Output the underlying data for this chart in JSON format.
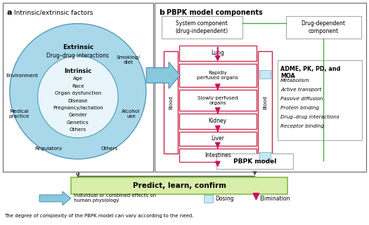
{
  "title_a": "Intrinsic/extrinsic factors",
  "title_b": "PBPK model components",
  "label_a": "a",
  "label_b": "b",
  "outer_ellipse_color": "#a8d8ea",
  "inner_ellipse_color": "#e8f5fb",
  "extrinsic_label": "Extrinsic",
  "intrinsic_label": "Intrinsic",
  "intrinsic_items": [
    "Age",
    "Race",
    "Organ dysfunction",
    "Disease",
    "Pregnancy/lactation",
    "Gender",
    "Genetics",
    "Others"
  ],
  "blood_label": "Blood",
  "system_component_label": "System component\n(drug-independent)",
  "drug_dependent_label": "Drug-dependent\ncomponent",
  "adme_title": "ADME, PK, PD, and\nMOA",
  "adme_items": [
    "Metabolism",
    "Active transport",
    "Passive diffusion",
    "Protein binding",
    "Drug–drug interactions",
    "Receptor binding"
  ],
  "pbpk_model_label": "PBPK model",
  "predict_label": "Predict, learn, confirm",
  "legend_arrow_label": "Individual or combined effects on\nhuman physiology",
  "dosing_label": "Dosing",
  "elimination_label": "Elimination",
  "bg_color": "#ffffff",
  "organ_box_border": "#cc2244",
  "dosing_box_color": "#c8e8f4",
  "dosing_box_border": "#8abcd4",
  "green_line_color": "#44aa44",
  "flow_arrow_color": "#cc1166",
  "predict_box_color": "#d8eeaa",
  "predict_border_color": "#88bb44",
  "arrow_fill": "#88c8dc",
  "arrow_border": "#5599bb",
  "caption": "The degree of complexity of the PBPK model can vary according to the need.",
  "panel_border": "#666666",
  "organ_boxes": [
    [
      "Lung",
      0
    ],
    [
      "Rapidly\nperfused\norgans",
      1
    ],
    [
      "Slowly perfused\norgans",
      2
    ],
    [
      "Kidney",
      3
    ],
    [
      "Liver",
      4
    ],
    [
      "Intestines",
      5
    ]
  ]
}
